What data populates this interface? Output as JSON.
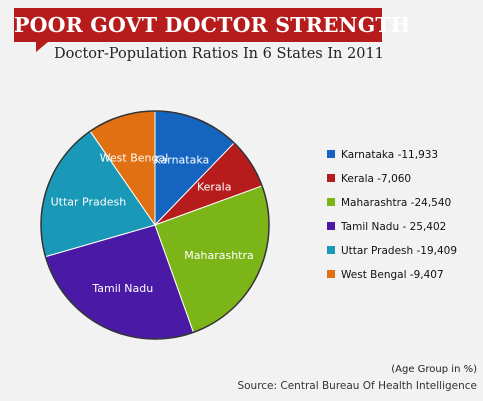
{
  "header": {
    "title": "POOR GOVT DOCTOR STRENGTH",
    "subtitle": "Doctor-Population Ratios In 6 States In 2011"
  },
  "footer": {
    "note": "(Age Group in %)",
    "source": "Source: Central Bureau Of Health Intelligence"
  },
  "colors": {
    "banner": "#b71c1c",
    "karnataka": "#1565c0",
    "kerala": "#b71c1c",
    "maharashtra": "#7cb518",
    "tamil_nadu": "#4a1aa6",
    "uttar_pradesh": "#1a98b8",
    "west_bengal": "#e07012"
  },
  "chart_data": {
    "type": "pie",
    "title": "Doctor-Population Ratios In 6 States In 2011",
    "slices": [
      {
        "label": "Karnataka",
        "legend": "Karnataka -11,933",
        "value": 11933,
        "color": "#1565c0"
      },
      {
        "label": "Kerala",
        "legend": "Kerala -7,060",
        "value": 7060,
        "color": "#b71c1c"
      },
      {
        "label": "Maharashtra",
        "legend": "Maharashtra -24,540",
        "value": 24540,
        "color": "#7cb518"
      },
      {
        "label": "Tamil Nadu",
        "legend": "Tamil Nadu - 25,402",
        "value": 25402,
        "color": "#4a1aa6"
      },
      {
        "label": "Uttar Pradesh",
        "legend": "Uttar Pradesh -19,409",
        "value": 19409,
        "color": "#1a98b8"
      },
      {
        "label": "West Bengal",
        "legend": "West Bengal -9,407",
        "value": 9407,
        "color": "#e07012"
      }
    ],
    "legend_position": "right"
  }
}
